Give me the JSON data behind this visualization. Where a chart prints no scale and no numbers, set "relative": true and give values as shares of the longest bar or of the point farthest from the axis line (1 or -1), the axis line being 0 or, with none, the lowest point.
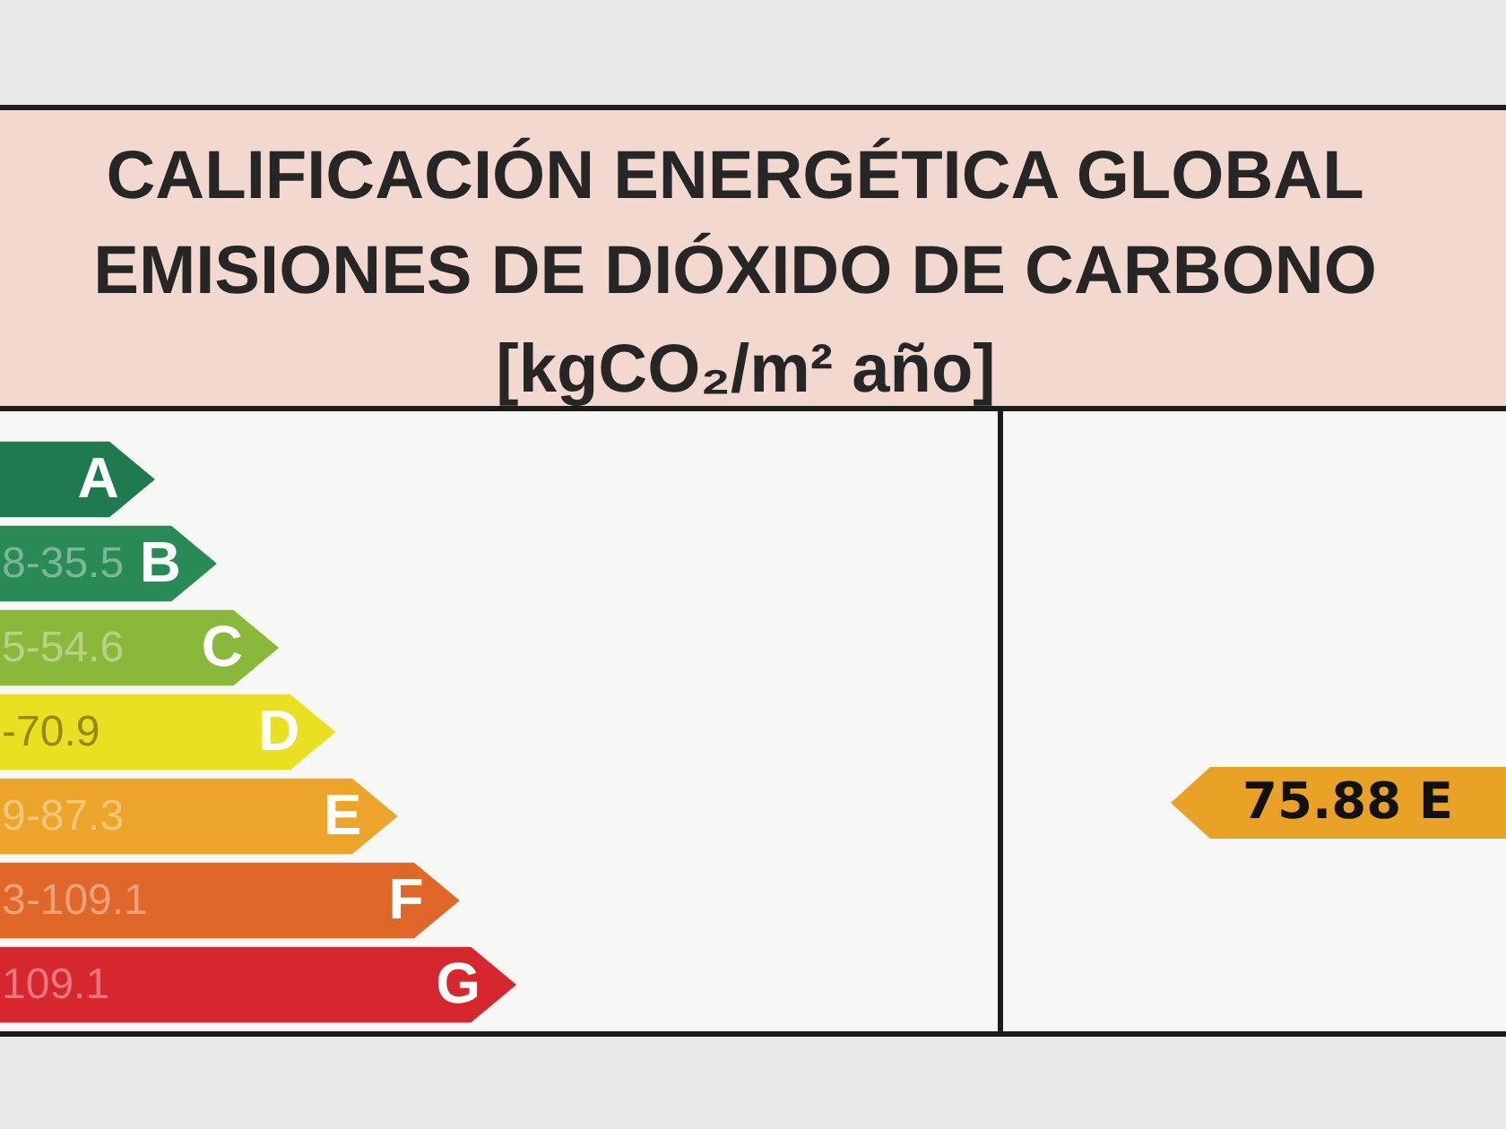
{
  "chart_data": {
    "type": "bar",
    "orientation": "horizontal",
    "relative": true,
    "title": "CALIFICACIÓN ENERGÉTICA GLOBAL\nEMISIONES DE DIÓXIDO DE CARBONO",
    "subtitle": "[kgCO₂/m² año]",
    "categories": [
      "A",
      "8-35.5 B",
      "5-54.6 C",
      "-70.9 D",
      "9-87.3 E",
      "3-109.1 F",
      "109.1 G"
    ],
    "values": [
      0.3,
      0.42,
      0.54,
      0.65,
      0.77,
      0.89,
      1
    ],
    "colors": [
      "#1f7a50",
      "#2a8a55",
      "#8ab83a",
      "#e8e020",
      "#eca52a",
      "#e0672a",
      "#d6262e"
    ],
    "tick_labels": "y",
    "annotations": [
      "75.88 E"
    ]
  }
}
